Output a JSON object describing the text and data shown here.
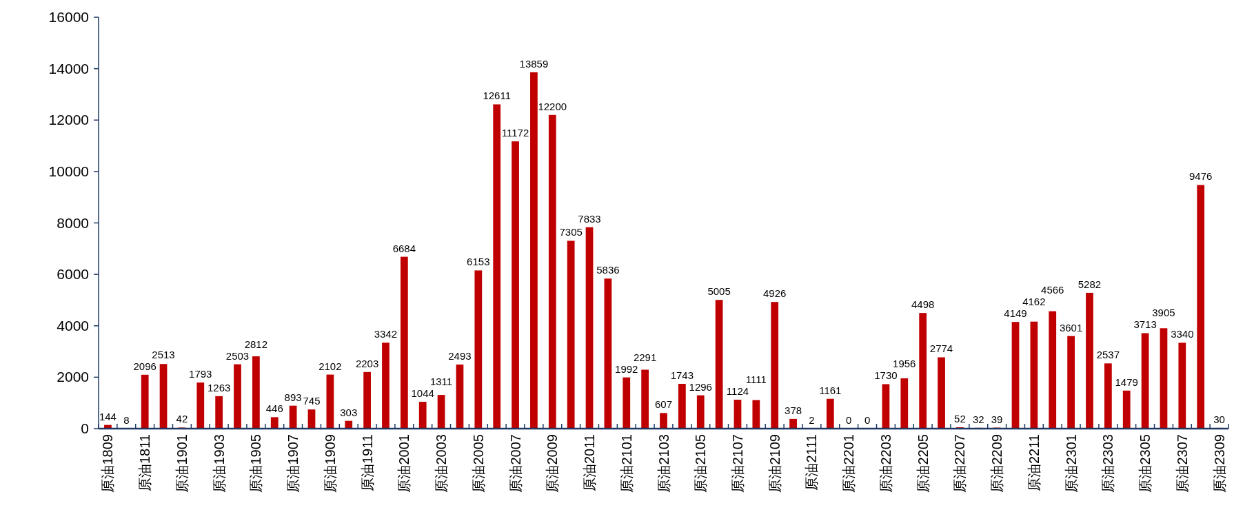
{
  "chart_data": {
    "type": "bar",
    "categories": [
      "原油1809",
      null,
      "原油1811",
      null,
      "原油1901",
      null,
      "原油1903",
      null,
      "原油1905",
      null,
      "原油1907",
      null,
      "原油1909",
      null,
      "原油1911",
      null,
      "原油2001",
      null,
      "原油2003",
      null,
      "原油2005",
      null,
      "原油2007",
      null,
      "原油2009",
      null,
      "原油2011",
      null,
      "原油2101",
      null,
      "原油2103",
      null,
      "原油2105",
      null,
      "原油2107",
      null,
      "原油2109",
      null,
      "原油2111",
      null,
      "原油2201",
      null,
      "原油2203",
      null,
      "原油2205",
      null,
      "原油2207",
      null,
      "原油2209",
      null,
      "原油2211",
      null,
      "原油2301",
      null,
      "原油2303",
      null,
      "原油2305",
      null,
      "原油2307",
      null,
      "原油2309"
    ],
    "values": [
      144,
      8,
      2096,
      2513,
      42,
      1793,
      1263,
      2503,
      2812,
      446,
      893,
      745,
      2102,
      303,
      2203,
      3342,
      6684,
      1044,
      1311,
      2493,
      6153,
      12611,
      11172,
      13859,
      12200,
      7305,
      7833,
      5836,
      1992,
      2291,
      607,
      1743,
      1296,
      5005,
      1124,
      1111,
      4926,
      378,
      2,
      1161,
      0,
      0,
      1730,
      1956,
      4498,
      2774,
      52,
      32,
      39,
      4149,
      4162,
      4566,
      3601,
      5282,
      2537,
      1479,
      3713,
      3905,
      3340,
      9476,
      30
    ],
    "color": "#c00000",
    "ylim": [
      0,
      16000
    ],
    "yticks": [
      0,
      2000,
      4000,
      6000,
      8000,
      10000,
      12000,
      14000,
      16000
    ],
    "data_labels": true
  }
}
